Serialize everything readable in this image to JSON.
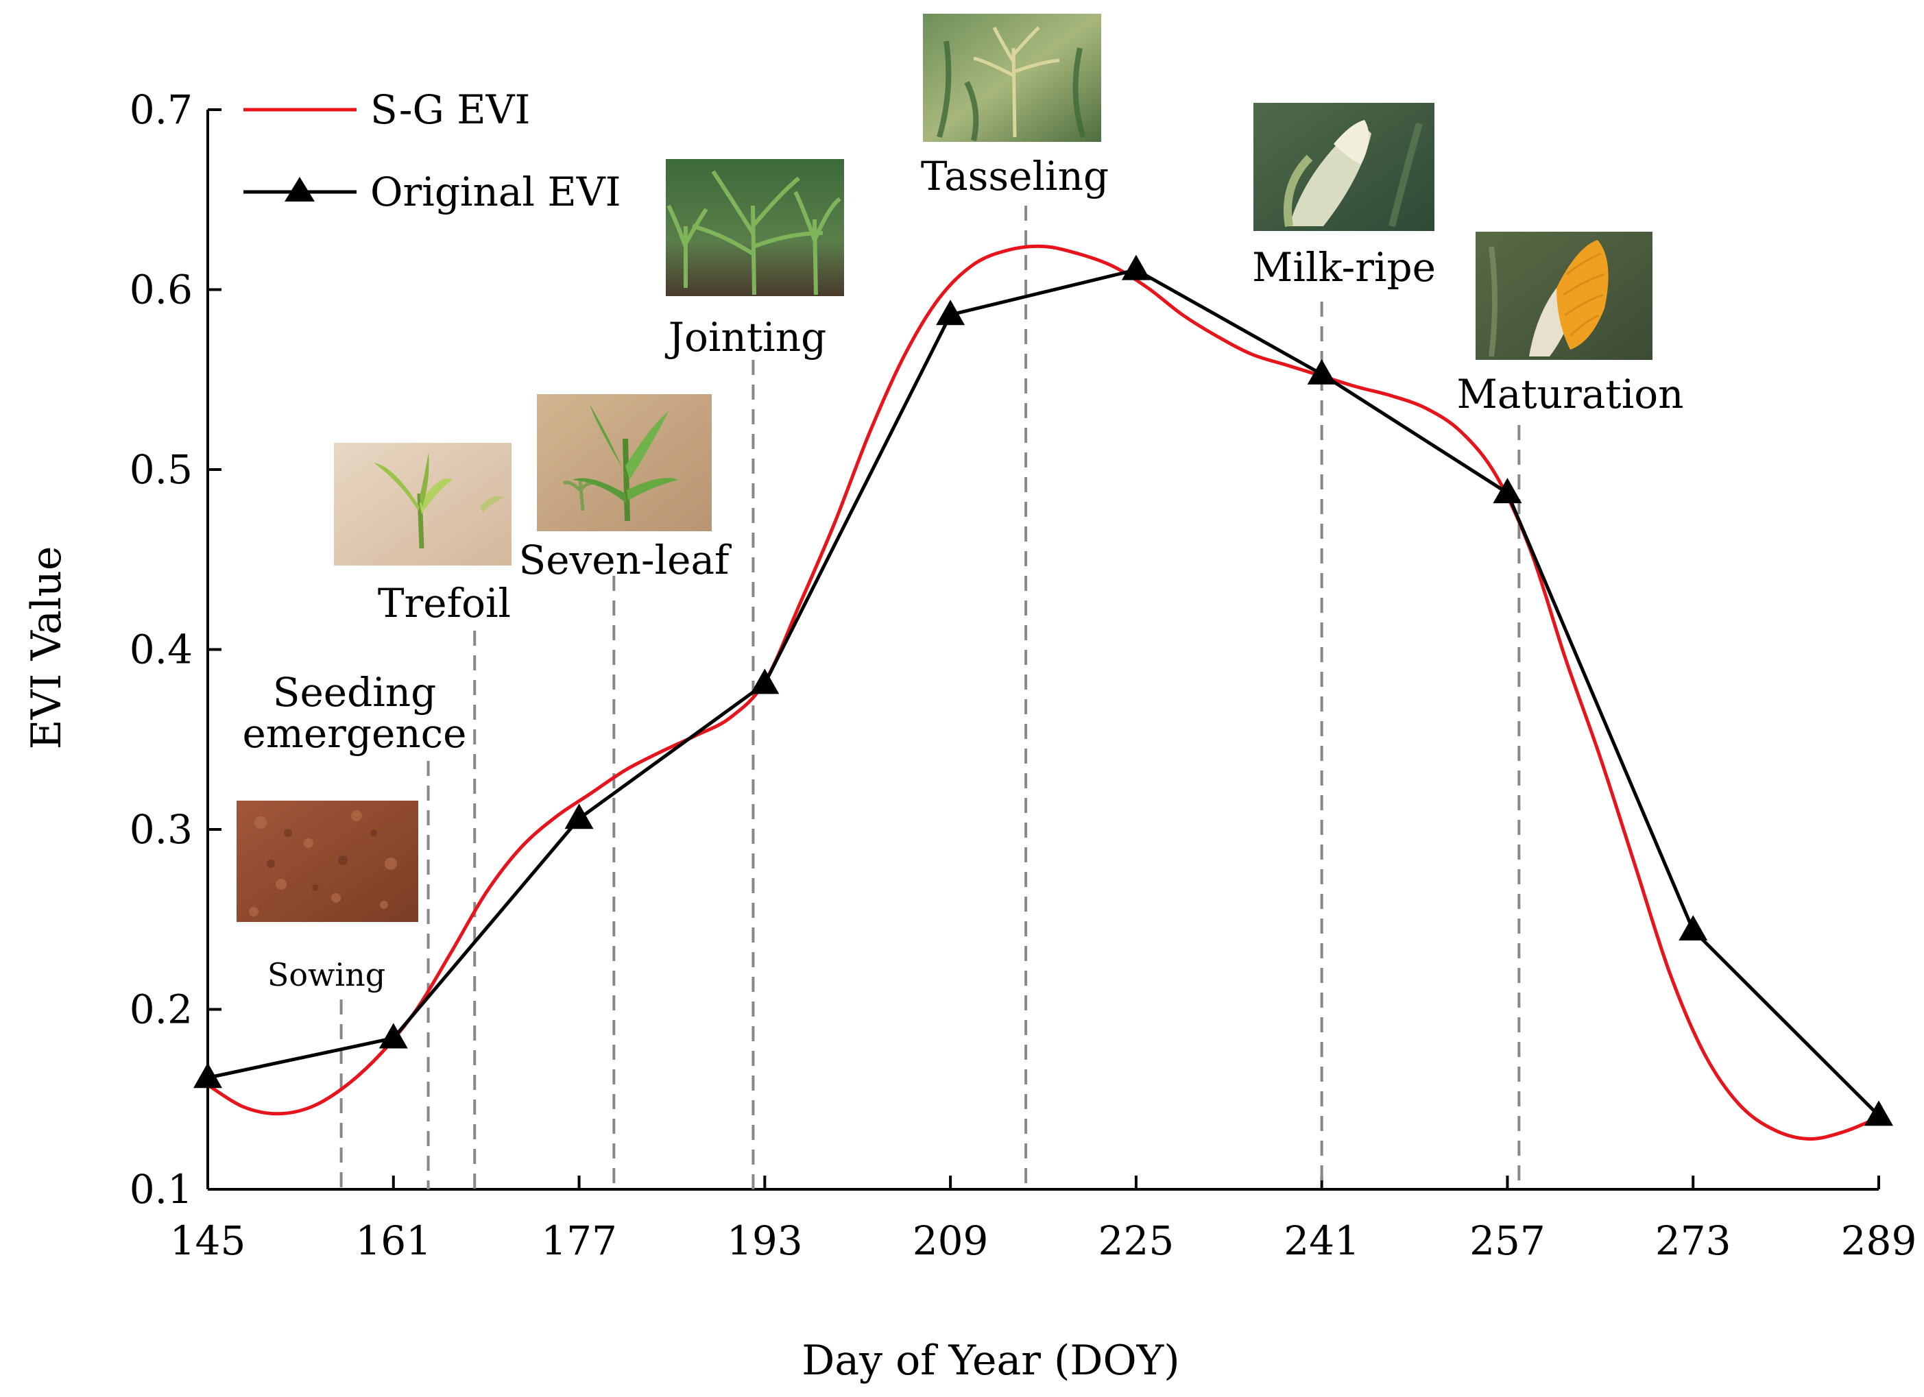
{
  "chart_data": {
    "type": "line",
    "xlabel": "Day of Year (DOY)",
    "ylabel": "EVI Value",
    "xlim": [
      145,
      289
    ],
    "ylim": [
      0.1,
      0.7
    ],
    "x_ticks": [
      "145",
      "161",
      "177",
      "193",
      "209",
      "225",
      "241",
      "257",
      "273",
      "289"
    ],
    "y_ticks": [
      "0.1",
      "0.2",
      "0.3",
      "0.4",
      "0.5",
      "0.6",
      "0.7"
    ],
    "legend": {
      "position": "top-left",
      "entries": [
        "S-G EVI",
        "Original EVI"
      ]
    },
    "series": [
      {
        "name": "Original EVI",
        "color": "#000000",
        "marker": "triangle",
        "x": [
          145,
          161,
          177,
          193,
          209,
          225,
          241,
          257,
          273,
          289
        ],
        "y": [
          0.162,
          0.184,
          0.306,
          0.381,
          0.586,
          0.611,
          0.553,
          0.487,
          0.244,
          0.141
        ]
      },
      {
        "name": "S-G EVI",
        "color": "#e8141c",
        "marker": "none",
        "x": [
          145,
          148,
          151,
          154,
          157,
          160,
          163,
          166,
          169,
          172,
          175,
          178,
          181,
          184,
          187,
          190,
          193,
          196,
          199,
          202,
          205,
          208,
          211,
          214,
          217,
          220,
          223,
          226,
          229,
          232,
          235,
          238,
          241,
          244,
          247,
          250,
          253,
          256,
          259,
          262,
          265,
          268,
          271,
          274,
          277,
          280,
          283,
          286,
          289
        ],
        "y": [
          0.158,
          0.146,
          0.142,
          0.146,
          0.158,
          0.176,
          0.2,
          0.232,
          0.265,
          0.29,
          0.307,
          0.32,
          0.333,
          0.343,
          0.352,
          0.362,
          0.382,
          0.425,
          0.47,
          0.52,
          0.563,
          0.595,
          0.614,
          0.622,
          0.624,
          0.62,
          0.613,
          0.601,
          0.586,
          0.574,
          0.564,
          0.558,
          0.552,
          0.546,
          0.541,
          0.534,
          0.521,
          0.497,
          0.455,
          0.395,
          0.34,
          0.28,
          0.22,
          0.175,
          0.147,
          0.133,
          0.128,
          0.132,
          0.14
        ]
      }
    ],
    "annotations": [
      {
        "label": "Sowing",
        "x": 156.5
      },
      {
        "label": "Seeding emergence",
        "x": 164
      },
      {
        "label": "Trefoil",
        "x": 168
      },
      {
        "label": "Seven-leaf",
        "x": 180
      },
      {
        "label": "Jointing",
        "x": 192
      },
      {
        "label": "Tasseling",
        "x": 215.5
      },
      {
        "label": "Milk-ripe",
        "x": 241
      },
      {
        "label": "Maturation",
        "x": 258
      }
    ]
  },
  "stage_labels": {
    "sowing": "Sowing",
    "seeding_1": "Seeding",
    "seeding_2": "emergence",
    "trefoil": "Trefoil",
    "seven_leaf": "Seven-leaf",
    "jointing": "Jointing",
    "tasseling": "Tasseling",
    "milk_ripe": "Milk-ripe",
    "maturation": "Maturation"
  },
  "photos": {
    "sowing": "soil-photo",
    "trefoil": "seedling-photo",
    "seven_leaf": "young-plant-photo",
    "jointing": "jointing-plant-photo",
    "tasseling": "tassel-photo",
    "milk_ripe": "milk-ripe-ear-photo",
    "maturation": "mature-ear-photo"
  }
}
